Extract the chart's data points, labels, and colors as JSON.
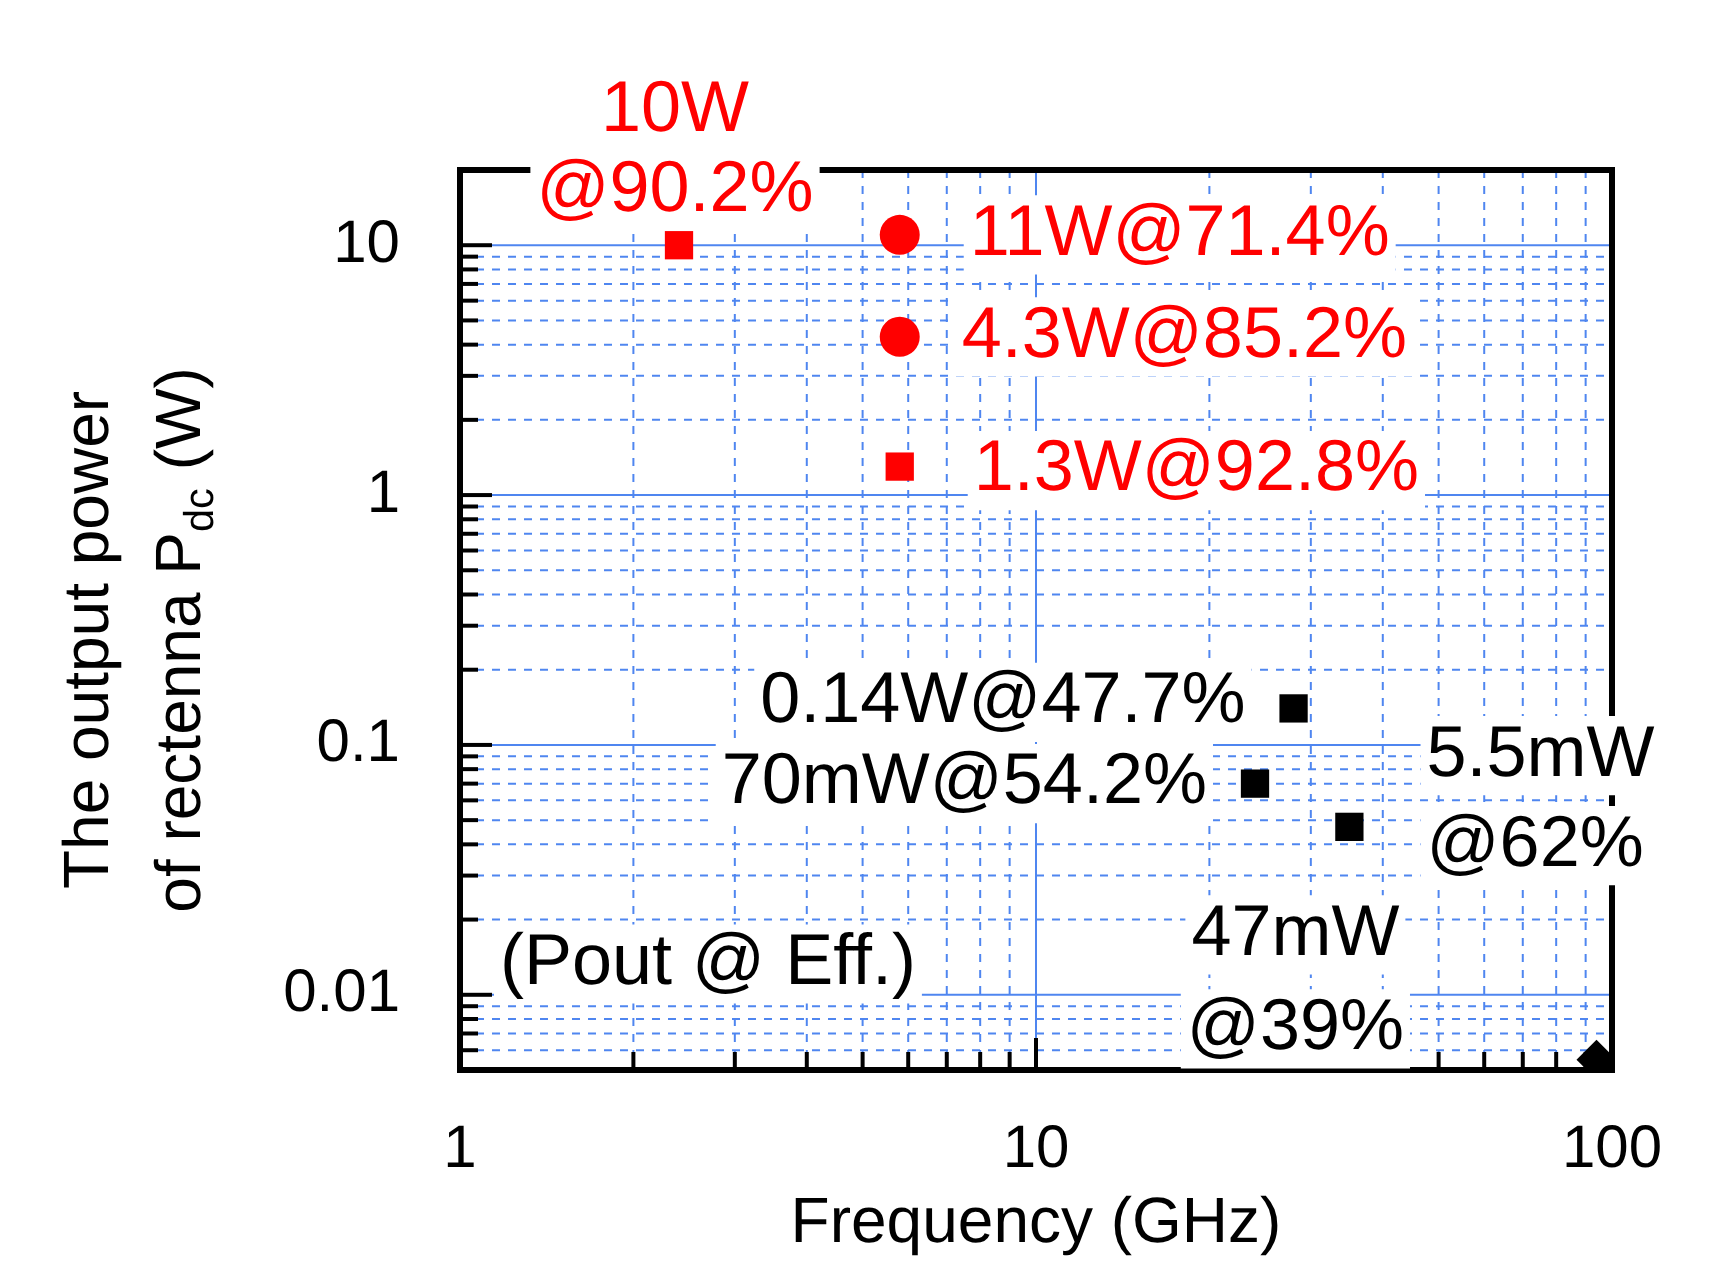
{
  "chart_data": {
    "type": "scatter",
    "xlabel": "Frequency (GHz)",
    "ylabel": "The output power\nof rectenna P$_{dc}$ (W)",
    "log": "xy",
    "xlim": [
      1,
      100
    ],
    "xticks": [
      1,
      {
        "value": 2,
        "label": null
      },
      {
        "value": 3,
        "label": null
      },
      {
        "value": 4,
        "label": null
      },
      {
        "value": 5,
        "label": null
      },
      {
        "value": 6,
        "label": null
      },
      {
        "value": 7,
        "label": null
      },
      {
        "value": 8,
        "label": null
      },
      {
        "value": 9,
        "label": null
      },
      10,
      {
        "value": 20,
        "label": null
      },
      {
        "value": 30,
        "label": null
      },
      {
        "value": 40,
        "label": null
      },
      {
        "value": 50,
        "label": null
      },
      {
        "value": 60,
        "label": null
      },
      {
        "value": 70,
        "label": null
      },
      {
        "value": 80,
        "label": null
      },
      {
        "value": 90,
        "label": null
      },
      100
    ],
    "ylim": [
      0.005,
      20
    ],
    "yticks": [
      {
        "value": 0.006,
        "label": null
      },
      {
        "value": 0.007,
        "label": null
      },
      {
        "value": 0.008,
        "label": null
      },
      {
        "value": 0.009,
        "label": null
      },
      0.01,
      {
        "value": 0.02,
        "label": null
      },
      {
        "value": 0.03,
        "label": null
      },
      {
        "value": 0.04,
        "label": null
      },
      {
        "value": 0.05,
        "label": null
      },
      {
        "value": 0.06,
        "label": null
      },
      {
        "value": 0.07,
        "label": null
      },
      {
        "value": 0.08,
        "label": null
      },
      {
        "value": 0.09,
        "label": null
      },
      0.1,
      {
        "value": 0.2,
        "label": null
      },
      {
        "value": 0.3,
        "label": null
      },
      {
        "value": 0.4,
        "label": null
      },
      {
        "value": 0.5,
        "label": null
      },
      {
        "value": 0.6,
        "label": null
      },
      {
        "value": 0.7,
        "label": null
      },
      {
        "value": 0.8,
        "label": null
      },
      {
        "value": 0.9,
        "label": null
      },
      1,
      {
        "value": 2,
        "label": null
      },
      {
        "value": 3,
        "label": null
      },
      {
        "value": 4,
        "label": null
      },
      {
        "value": 5,
        "label": null
      },
      {
        "value": 6,
        "label": null
      },
      {
        "value": 7,
        "label": null
      },
      {
        "value": 8,
        "label": null
      },
      {
        "value": 9,
        "label": null
      },
      10
    ],
    "grid": true,
    "series": [
      {
        "color": "#ff0000",
        "marker": "square",
        "x": [
          2.4,
          5.8
        ],
        "values": [
          10,
          1.3
        ]
      },
      {
        "color": "#ff0000",
        "marker": "circle",
        "x": [
          5.8,
          5.8
        ],
        "values": [
          11,
          4.3
        ]
      },
      {
        "color": "#000000",
        "marker": "square",
        "x": [
          28,
          24,
          35
        ],
        "values": [
          0.14,
          0.07,
          0.047
        ]
      },
      {
        "color": "#000000",
        "marker": "diamond",
        "x": [
          94
        ],
        "values": [
          0.0055
        ]
      }
    ],
    "annotations": [
      {
        "text": "10W\n@90.2%",
        "x": 2.4,
        "y": 10
      },
      {
        "text": "11W@71.4%",
        "x": 5.8,
        "y": 11
      },
      {
        "text": "4.3W@85.2%",
        "x": 5.8,
        "y": 4.3
      },
      {
        "text": "1.3W@92.8%",
        "x": 5.8,
        "y": 1.3
      },
      {
        "text": "0.14W@47.7%",
        "x": 28,
        "y": 0.14
      },
      {
        "text": "70mW@54.2%",
        "x": 24,
        "y": 0.07
      },
      {
        "text": "47mW\n@39%",
        "x": 35,
        "y": 0.047
      },
      {
        "text": "5.5mW\n@62%",
        "x": 94,
        "y": 0.0055
      },
      "(Pout @ Eff.)"
    ]
  }
}
